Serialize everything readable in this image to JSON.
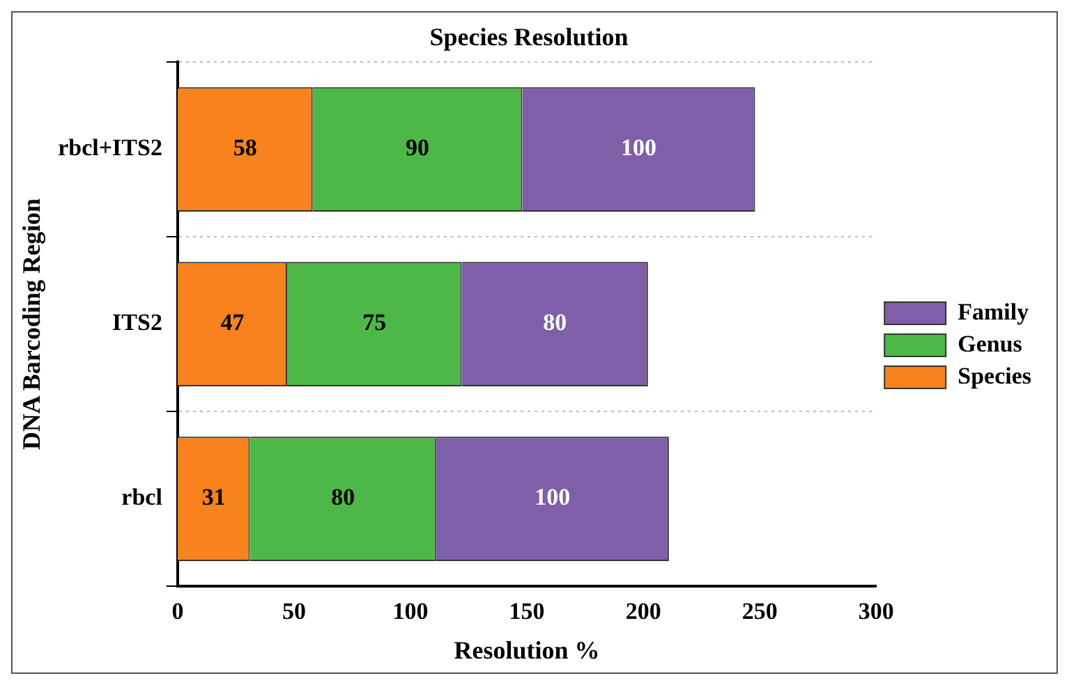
{
  "chart_data": {
    "type": "bar",
    "orientation": "horizontal",
    "stacked": true,
    "title": "Species Resolution",
    "xlabel": "Resolution %",
    "ylabel": "DNA Barcoding Region",
    "categories": [
      "rbcl+ITS2",
      "ITS2",
      "rbcl"
    ],
    "series": [
      {
        "name": "Species",
        "color": "#f7821e",
        "values": [
          58,
          47,
          31
        ]
      },
      {
        "name": "Genus",
        "color": "#4db848",
        "values": [
          90,
          75,
          80
        ]
      },
      {
        "name": "Family",
        "color": "#7f5fa8",
        "values": [
          100,
          80,
          100
        ]
      }
    ],
    "xlim": [
      0,
      300
    ],
    "xticks": [
      0,
      50,
      100,
      150,
      200,
      250,
      300
    ],
    "grid": "y",
    "legend": "right",
    "data_labels": true
  }
}
